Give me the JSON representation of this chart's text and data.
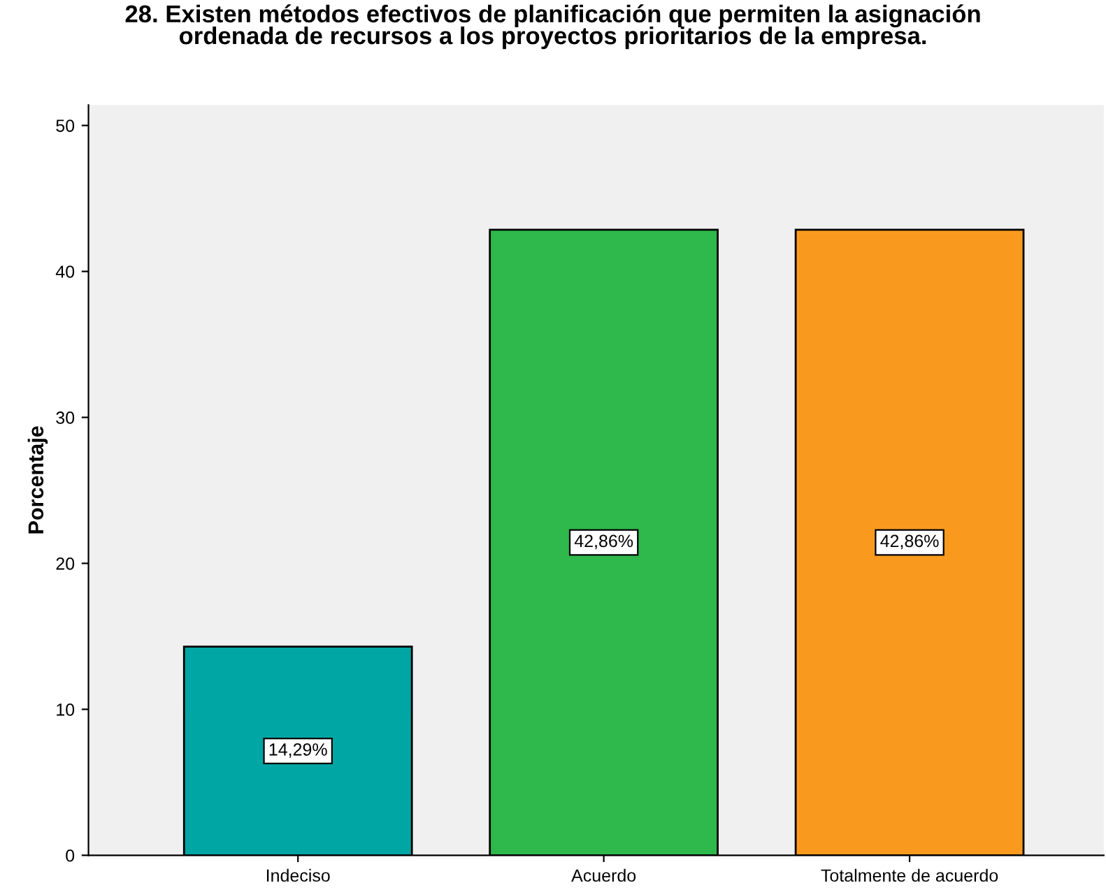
{
  "chart_data": {
    "type": "bar",
    "title": "28. Existen métodos efectivos de planificación que permiten la asignación\nordenada de recursos a los proyectos prioritarios de la empresa.",
    "ylabel": "Porcentaje",
    "categories": [
      "Indeciso",
      "Acuerdo",
      "Totalmente de acuerdo"
    ],
    "values": [
      14.29,
      42.86,
      42.86
    ],
    "colors": [
      "#00a6a3",
      "#2fb84c",
      "#f99a1f"
    ],
    "value_labels": [
      "14,29%",
      "42,86%",
      "42,86%"
    ],
    "ylim": [
      0,
      51.4
    ],
    "yticks": [
      0,
      10,
      20,
      30,
      40,
      50
    ],
    "grid": false,
    "legend": false
  }
}
